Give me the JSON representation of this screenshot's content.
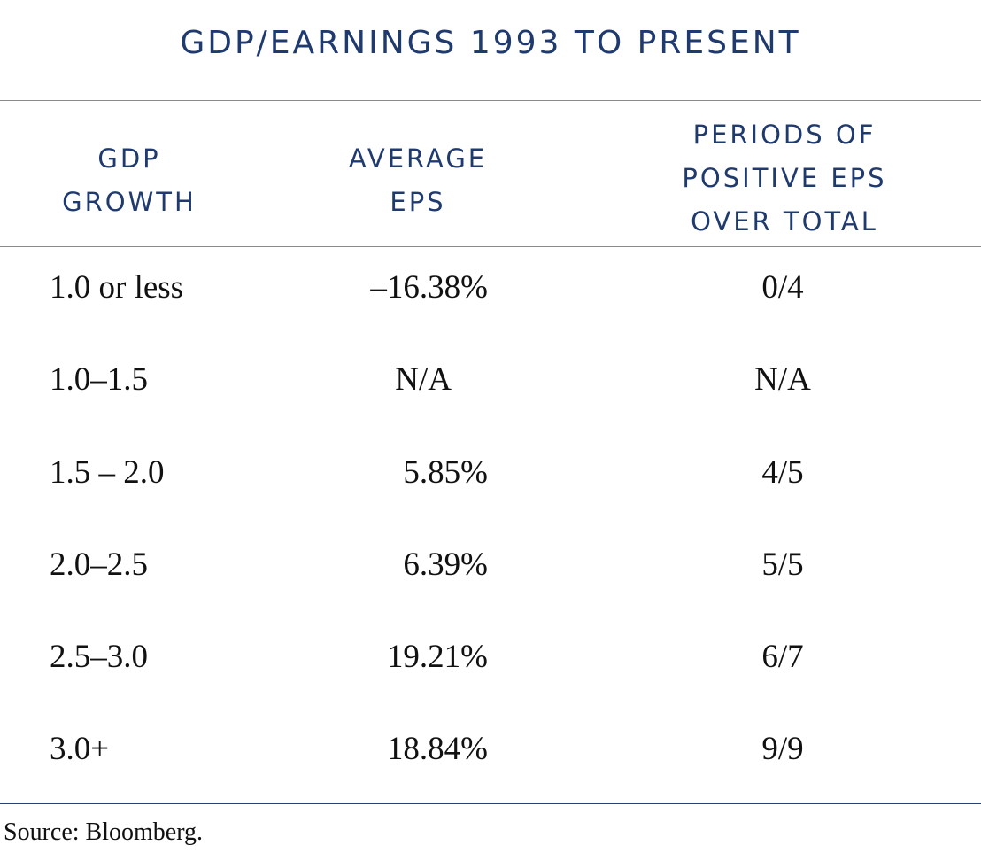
{
  "title": "GDP/EARNINGS 1993 TO PRESENT",
  "headers": {
    "gdp_growth": [
      "GDP",
      "GROWTH"
    ],
    "average_eps": [
      "AVERAGE",
      "EPS"
    ],
    "periods": [
      "PERIODS OF",
      "POSITIVE EPS",
      "OVER TOTAL"
    ]
  },
  "rows": [
    {
      "gdp_growth": "1.0 or less",
      "average_eps": "–16.38%",
      "periods": "0/4"
    },
    {
      "gdp_growth": "1.0–1.5",
      "average_eps": "N/A",
      "periods": "N/A"
    },
    {
      "gdp_growth": "1.5 – 2.0",
      "average_eps": "5.85%",
      "periods": "4/5"
    },
    {
      "gdp_growth": "2.0–2.5",
      "average_eps": "6.39%",
      "periods": "5/5"
    },
    {
      "gdp_growth": "2.5–3.0",
      "average_eps": "19.21%",
      "periods": "6/7"
    },
    {
      "gdp_growth": "3.0+",
      "average_eps": "18.84%",
      "periods": "9/9"
    }
  ],
  "source": "Source: Bloomberg.",
  "colors": {
    "header_navy": "#1f3a6e",
    "body_text": "#111111",
    "rule_dark": "#2a4270",
    "rule_gray": "#8a8a8a"
  }
}
